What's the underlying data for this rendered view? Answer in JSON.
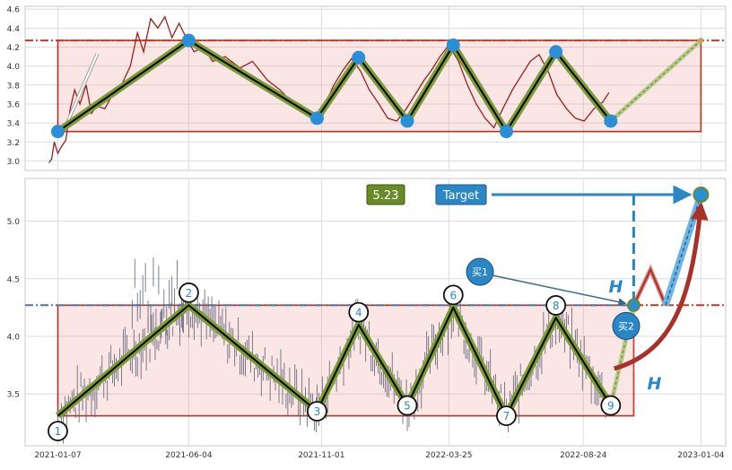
{
  "chart_data": [
    {
      "type": "line",
      "panel": "top",
      "xlim": [
        "2020-12-01",
        "2023-02-01"
      ],
      "ylim": [
        2.9,
        4.63
      ],
      "yticks": [
        3.0,
        3.2,
        3.4,
        3.6,
        3.8,
        4.0,
        4.2,
        4.4,
        4.6
      ],
      "grid": true,
      "resistance_level": 4.27,
      "support_level": 3.31,
      "rectangle": {
        "x_start": "2021-01-07",
        "x_end": "2023-01-04",
        "top": 4.27,
        "bottom": 3.31
      },
      "series": [
        {
          "values": [
            [
              "2020-12-28",
              2.98
            ],
            [
              "2020-12-31",
              3.02
            ],
            [
              "2021-01-03",
              3.2
            ],
            [
              "2021-01-07",
              3.08
            ],
            [
              "2021-01-11",
              3.15
            ],
            [
              "2021-01-16",
              3.22
            ],
            [
              "2021-01-21",
              3.55
            ],
            [
              "2021-01-26",
              3.75
            ],
            [
              "2021-02-01",
              3.6
            ],
            [
              "2021-02-08",
              3.8
            ],
            [
              "2021-02-14",
              3.5
            ],
            [
              "2021-02-20",
              3.58
            ],
            [
              "2021-03-01",
              3.55
            ],
            [
              "2021-03-10",
              3.7
            ],
            [
              "2021-03-20",
              3.8
            ],
            [
              "2021-03-30",
              4.0
            ],
            [
              "2021-04-07",
              4.35
            ],
            [
              "2021-04-14",
              4.15
            ],
            [
              "2021-04-22",
              4.5
            ],
            [
              "2021-04-30",
              4.4
            ],
            [
              "2021-05-08",
              4.52
            ],
            [
              "2021-05-16",
              4.3
            ],
            [
              "2021-05-24",
              4.45
            ],
            [
              "2021-06-01",
              4.3
            ],
            [
              "2021-06-10",
              4.15
            ],
            [
              "2021-06-20",
              4.2
            ],
            [
              "2021-07-01",
              4.05
            ],
            [
              "2021-07-15",
              4.1
            ],
            [
              "2021-08-01",
              3.98
            ],
            [
              "2021-08-15",
              4.05
            ],
            [
              "2021-09-01",
              3.85
            ],
            [
              "2021-09-15",
              3.75
            ],
            [
              "2021-10-01",
              3.6
            ],
            [
              "2021-10-15",
              3.5
            ],
            [
              "2021-10-25",
              3.42
            ],
            [
              "2021-11-05",
              3.6
            ],
            [
              "2021-11-15",
              3.8
            ],
            [
              "2021-11-25",
              3.95
            ],
            [
              "2021-12-05",
              4.08
            ],
            [
              "2021-12-15",
              3.95
            ],
            [
              "2021-12-25",
              3.75
            ],
            [
              "2022-01-05",
              3.6
            ],
            [
              "2022-01-15",
              3.45
            ],
            [
              "2022-01-25",
              3.42
            ],
            [
              "2022-02-05",
              3.55
            ],
            [
              "2022-02-15",
              3.7
            ],
            [
              "2022-02-25",
              3.85
            ],
            [
              "2022-03-05",
              3.95
            ],
            [
              "2022-03-15",
              4.1
            ],
            [
              "2022-03-25",
              4.22
            ],
            [
              "2022-04-05",
              4.05
            ],
            [
              "2022-04-15",
              3.8
            ],
            [
              "2022-04-25",
              3.6
            ],
            [
              "2022-05-05",
              3.45
            ],
            [
              "2022-05-15",
              3.35
            ],
            [
              "2022-05-25",
              3.55
            ],
            [
              "2022-06-05",
              3.75
            ],
            [
              "2022-06-15",
              3.9
            ],
            [
              "2022-06-25",
              4.05
            ],
            [
              "2022-07-05",
              4.12
            ],
            [
              "2022-07-15",
              3.95
            ],
            [
              "2022-07-25",
              3.7
            ],
            [
              "2022-08-05",
              3.55
            ],
            [
              "2022-08-15",
              3.45
            ],
            [
              "2022-08-25",
              3.42
            ],
            [
              "2022-09-05",
              3.55
            ],
            [
              "2022-09-15",
              3.62
            ],
            [
              "2022-09-22",
              3.72
            ]
          ]
        }
      ],
      "markers": [
        {
          "date": "2021-01-07",
          "value": 3.31
        },
        {
          "date": "2021-06-04",
          "value": 4.27
        },
        {
          "date": "2021-10-27",
          "value": 3.45
        },
        {
          "date": "2021-12-13",
          "value": 4.09
        },
        {
          "date": "2022-02-06",
          "value": 3.42
        },
        {
          "date": "2022-03-30",
          "value": 4.22
        },
        {
          "date": "2022-05-29",
          "value": 3.31
        },
        {
          "date": "2022-07-24",
          "value": 4.15
        },
        {
          "date": "2022-09-24",
          "value": 3.42
        }
      ],
      "projection": {
        "from_date": "2022-09-24",
        "from_value": 3.42,
        "to_date": "2023-01-04",
        "to_value": 4.27
      }
    },
    {
      "type": "line",
      "panel": "bottom",
      "xlim": [
        "2020-12-01",
        "2023-02-01"
      ],
      "ylim": [
        3.05,
        5.37
      ],
      "yticks": [
        3.5,
        4.0,
        4.5,
        5.0
      ],
      "xtick_labels": [
        "2021-01-07",
        "2021-06-04",
        "2021-11-01",
        "2022-03-25",
        "2022-08-24",
        "2023-01-04"
      ],
      "grid": true,
      "resistance_level": 4.27,
      "support_level": 3.31,
      "target_value": 5.23,
      "target_label": "Target",
      "target_value_label": "5.23",
      "breakout_date": "2022-10-20",
      "height_label": "H",
      "pivots": [
        {
          "label": "1",
          "date": "2021-01-07",
          "value": 3.31
        },
        {
          "label": "2",
          "date": "2021-06-04",
          "value": 4.27
        },
        {
          "label": "3",
          "date": "2021-10-27",
          "value": 3.35
        },
        {
          "label": "4",
          "date": "2021-12-13",
          "value": 4.1
        },
        {
          "label": "5",
          "date": "2022-02-06",
          "value": 3.4
        },
        {
          "label": "6",
          "date": "2022-03-30",
          "value": 4.25
        },
        {
          "label": "7",
          "date": "2022-05-29",
          "value": 3.31
        },
        {
          "label": "8",
          "date": "2022-07-24",
          "value": 4.16
        },
        {
          "label": "9",
          "date": "2022-09-24",
          "value": 3.4
        }
      ],
      "annotations": [
        {
          "label": "买1",
          "date": "2022-10-20",
          "value": 4.27
        },
        {
          "label": "买2",
          "date": "2022-11-25",
          "value": 4.27
        }
      ]
    }
  ]
}
